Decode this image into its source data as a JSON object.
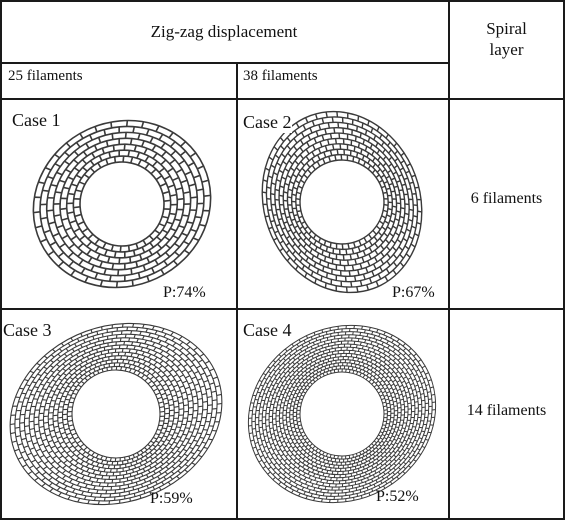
{
  "header": {
    "zigzag_title": "Zig-zag displacement",
    "spiral_title_line1": "Spiral",
    "spiral_title_line2": "layer",
    "col_25": "25 filaments",
    "col_38": "38 filaments"
  },
  "rows": [
    {
      "spiral_label": "6 filaments",
      "cells": [
        {
          "case_label": "Case 1",
          "porosity": "P:74%",
          "density": "sparse"
        },
        {
          "case_label": "Case 2",
          "porosity": "P:67%",
          "density": "medium"
        }
      ]
    },
    {
      "spiral_label": "14 filaments",
      "cells": [
        {
          "case_label": "Case 3",
          "porosity": "P:59%",
          "density": "dense"
        },
        {
          "case_label": "Case 4",
          "porosity": "P:52%",
          "density": "densest"
        }
      ]
    }
  ],
  "colors": {
    "border": "#1a1a1a",
    "scaffold_stroke": "#3a3a3a"
  }
}
